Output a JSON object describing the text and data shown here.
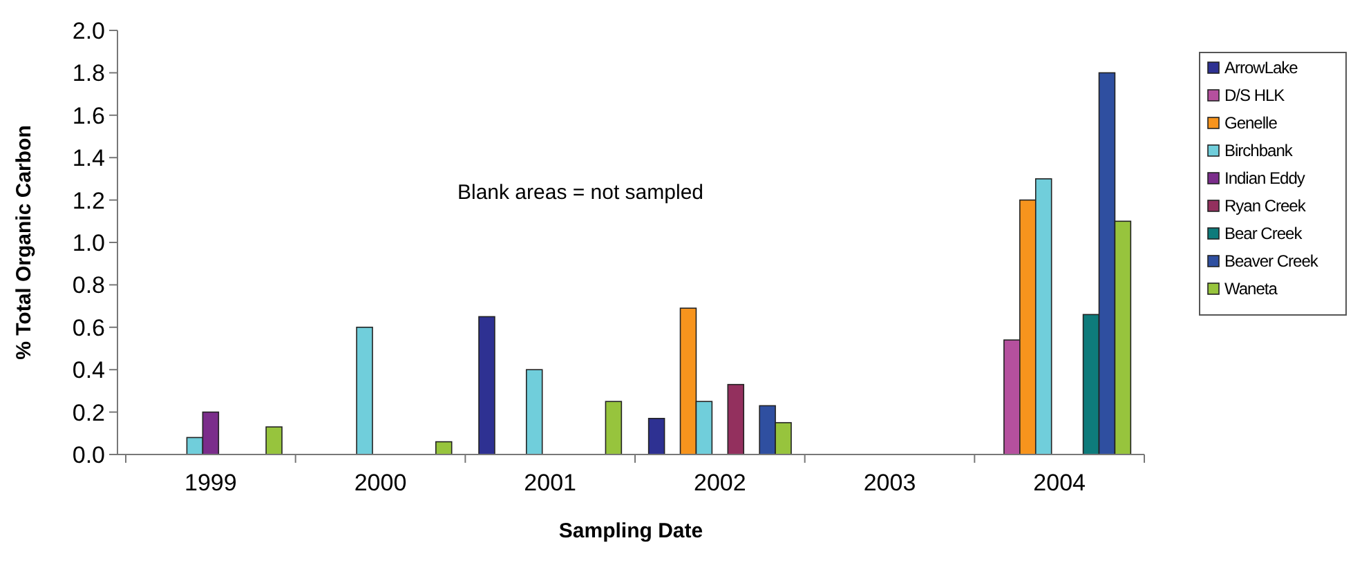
{
  "chart_data": {
    "type": "bar",
    "xlabel": "Sampling Date",
    "ylabel": "% Total Organic Carbon",
    "categories": [
      "1999",
      "2000",
      "2001",
      "2002",
      "2003",
      "2004"
    ],
    "series": [
      {
        "name": "ArrowLake",
        "color": "#2e3192",
        "values": [
          null,
          null,
          0.65,
          0.17,
          null,
          null
        ]
      },
      {
        "name": "D/S HLK",
        "color": "#b5509e",
        "values": [
          null,
          null,
          null,
          null,
          null,
          0.54
        ]
      },
      {
        "name": "Genelle",
        "color": "#f7941d",
        "values": [
          null,
          null,
          null,
          0.69,
          null,
          1.2
        ]
      },
      {
        "name": "Birchbank",
        "color": "#70cedb",
        "values": [
          0.08,
          0.6,
          0.4,
          0.25,
          null,
          1.3
        ]
      },
      {
        "name": "Indian Eddy",
        "color": "#7b2d8b",
        "values": [
          0.2,
          null,
          null,
          null,
          null,
          null
        ]
      },
      {
        "name": "Ryan Creek",
        "color": "#93305e",
        "values": [
          null,
          null,
          null,
          0.33,
          null,
          null
        ]
      },
      {
        "name": "Bear Creek",
        "color": "#0e7b7b",
        "values": [
          null,
          null,
          null,
          null,
          null,
          0.66
        ]
      },
      {
        "name": "Beaver Creek",
        "color": "#2f4fa0",
        "values": [
          null,
          null,
          null,
          0.23,
          null,
          1.8
        ]
      },
      {
        "name": "Waneta",
        "color": "#97c43d",
        "values": [
          0.13,
          0.06,
          0.25,
          0.15,
          null,
          1.1
        ]
      }
    ],
    "ylim": [
      0,
      2
    ],
    "yticks": [
      {
        "value": 0,
        "label": "0.0"
      },
      {
        "value": 0.2,
        "label": "0.2"
      },
      {
        "value": 0.4,
        "label": "0.4"
      },
      {
        "value": 0.6,
        "label": "0.6"
      },
      {
        "value": 0.8,
        "label": "0.8"
      },
      {
        "value": 1,
        "label": "1.0"
      },
      {
        "value": 1.2,
        "label": "1.2"
      },
      {
        "value": 1.4,
        "label": "1.4"
      },
      {
        "value": 1.6,
        "label": "1.6"
      },
      {
        "value": 1.8,
        "label": "1.8"
      },
      {
        "value": 2,
        "label": "2.0"
      }
    ],
    "grid": false,
    "legend": "right",
    "annotations": [
      "Blank areas = not sampled"
    ]
  }
}
